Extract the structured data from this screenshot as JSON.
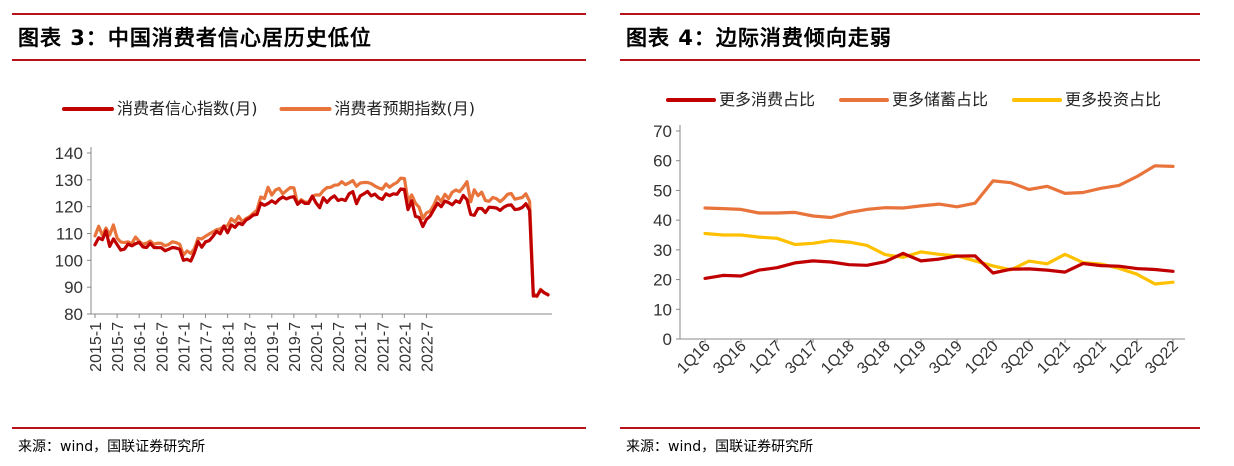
{
  "left": {
    "title": "图表 3：中国消费者信心居历史低位",
    "source": "来源：wind，国联证券研究所"
  },
  "right": {
    "title": "图表 4：边际消费倾向走弱",
    "source": "来源：wind，国联证券研究所"
  },
  "chart_data": [
    {
      "type": "line",
      "title": "图表 3：中国消费者信心居历史低位",
      "ylim": [
        80,
        140
      ],
      "yticks": [
        80,
        90,
        100,
        110,
        120,
        130,
        140
      ],
      "x_tick_labels": [
        "2015-1",
        "2015-7",
        "2016-1",
        "2016-7",
        "2017-1",
        "2017-7",
        "2018-1",
        "2018-7",
        "2019-1",
        "2019-7",
        "2020-1",
        "2020-7",
        "2021-1",
        "2021-7",
        "2022-1",
        "2022-7"
      ],
      "legend_position": "top",
      "series": [
        {
          "name": "消费者信心指数(月)",
          "color": "#c00000",
          "values": [
            105.8,
            108.4,
            107.7,
            111.0,
            105.2,
            108.0,
            105.9,
            103.8,
            104.2,
            106.1,
            105.4,
            106.2,
            106.7,
            105.0,
            104.8,
            106.4,
            104.8,
            104.7,
            104.7,
            103.6,
            104.1,
            104.8,
            104.6,
            104.1,
            100.0,
            100.4,
            99.7,
            102.8,
            107.0,
            104.9,
            106.9,
            107.3,
            108.9,
            110.8,
            109.9,
            112.8,
            110.3,
            113.2,
            112.3,
            113.9,
            113.3,
            115.0,
            115.8,
            116.9,
            117.1,
            121.3,
            120.5,
            121.2,
            122.2,
            121.3,
            122.7,
            123.6,
            122.9,
            123.5,
            123.7,
            120.9,
            122.1,
            121.2,
            121.2,
            123.9,
            121.4,
            119.6,
            123.3,
            121.6,
            123.1,
            124.0,
            122.3,
            122.8,
            122.3,
            124.8,
            125.6,
            121.1,
            124.0,
            124.8,
            125.7,
            124.0,
            124.7,
            123.3,
            122.7,
            124.8,
            124.1,
            124.8,
            124.6,
            126.6,
            126.4,
            118.9,
            122.2,
            116.4,
            116.0,
            112.6,
            115.3,
            116.5,
            118.9,
            121.3,
            120.0,
            122.1,
            121.5,
            120.7,
            122.2,
            121.5,
            124.2,
            122.6,
            117.1,
            116.8,
            119.3,
            119.3,
            117.8,
            119.8,
            119.7,
            119.5,
            118.6,
            119.8,
            120.5,
            120.7,
            118.9,
            119.1,
            119.7,
            121.1,
            118.6,
            86.7,
            86.8,
            88.9,
            87.9,
            87.1
          ]
        },
        {
          "name": "消费者预期指数(月)",
          "color": "#e8743b",
          "values": [
            109.1,
            112.7,
            109.3,
            112.0,
            109.4,
            113.2,
            108.3,
            106.8,
            106.6,
            106.9,
            106.2,
            108.7,
            107.1,
            106.0,
            106.4,
            107.2,
            106.0,
            106.4,
            106.3,
            105.4,
            105.9,
            106.9,
            106.6,
            106.0,
            102.0,
            103.5,
            102.6,
            104.3,
            108.2,
            108.0,
            109.0,
            109.8,
            110.6,
            111.4,
            111.7,
            112.6,
            112.9,
            115.5,
            114.3,
            116.4,
            114.4,
            115.6,
            116.3,
            117.6,
            118.7,
            123.6,
            123.0,
            127.2,
            124.3,
            126.2,
            126.8,
            124.8,
            126.0,
            127.1,
            127.0,
            121.0,
            122.6,
            121.7,
            121.7,
            123.9,
            124.4,
            124.3,
            126.0,
            127.1,
            127.2,
            128.0,
            128.1,
            129.3,
            128.2,
            128.9,
            129.7,
            127.6,
            128.8,
            129.0,
            129.0,
            128.6,
            127.7,
            127.0,
            126.5,
            128.5,
            127.2,
            128.3,
            129.0,
            130.6,
            130.5,
            122.0,
            124.4,
            121.3,
            119.8,
            115.6,
            117.7,
            118.3,
            120.6,
            123.7,
            121.9,
            124.6,
            123.0,
            125.4,
            126.2,
            125.6,
            127.3,
            129.3,
            121.8,
            126.3,
            124.1,
            125.4,
            122.3,
            122.0,
            123.4,
            123.0,
            121.9,
            123.0,
            124.6,
            124.9,
            122.8,
            123.1,
            123.4,
            124.8,
            122.0,
            87.7,
            86.5,
            89.2,
            87.9,
            87.3
          ]
        }
      ]
    },
    {
      "type": "line",
      "title": "图表 4：边际消费倾向走弱",
      "ylim": [
        0,
        70
      ],
      "yticks": [
        0,
        10,
        20,
        30,
        40,
        50,
        60,
        70
      ],
      "categories": [
        "1Q16",
        "2Q16",
        "3Q16",
        "4Q16",
        "1Q17",
        "2Q17",
        "3Q17",
        "4Q17",
        "1Q18",
        "2Q18",
        "3Q18",
        "4Q18",
        "1Q19",
        "2Q19",
        "3Q19",
        "4Q19",
        "1Q20",
        "2Q20",
        "3Q20",
        "4Q20",
        "1Q21",
        "2Q21",
        "3Q21",
        "4Q21",
        "1Q22",
        "2Q22",
        "3Q22"
      ],
      "x_tick_labels": [
        "1Q16",
        "3Q16",
        "1Q17",
        "3Q17",
        "1Q18",
        "3Q18",
        "1Q19",
        "3Q19",
        "1Q20",
        "3Q20",
        "1Q21",
        "3Q21",
        "1Q22",
        "3Q22"
      ],
      "legend_position": "top",
      "series": [
        {
          "name": "更多消费占比",
          "color": "#c00000",
          "values": [
            20.4,
            21.4,
            21.2,
            23.2,
            24.0,
            25.6,
            26.3,
            25.9,
            25.0,
            24.8,
            26.0,
            28.8,
            26.3,
            26.9,
            27.9,
            28.0,
            22.2,
            23.5,
            23.6,
            23.2,
            22.5,
            25.4,
            24.7,
            24.5,
            23.7,
            23.4,
            22.8
          ]
        },
        {
          "name": "更多储蓄占比",
          "color": "#e8743b",
          "values": [
            44.1,
            43.9,
            43.6,
            42.4,
            42.4,
            42.6,
            41.4,
            40.9,
            42.6,
            43.6,
            44.2,
            44.1,
            44.8,
            45.4,
            44.5,
            45.7,
            53.2,
            52.6,
            50.3,
            51.4,
            49.0,
            49.3,
            50.7,
            51.7,
            54.7,
            58.3,
            58.1
          ]
        },
        {
          "name": "更多投资占比",
          "color": "#ffc000",
          "values": [
            35.5,
            35.0,
            35.0,
            34.3,
            33.9,
            31.8,
            32.2,
            33.1,
            32.6,
            31.5,
            28.4,
            27.5,
            29.3,
            28.5,
            28.0,
            26.3,
            24.6,
            23.3,
            26.2,
            25.3,
            28.5,
            25.7,
            25.2,
            23.8,
            21.8,
            18.5,
            19.1
          ]
        }
      ]
    }
  ]
}
